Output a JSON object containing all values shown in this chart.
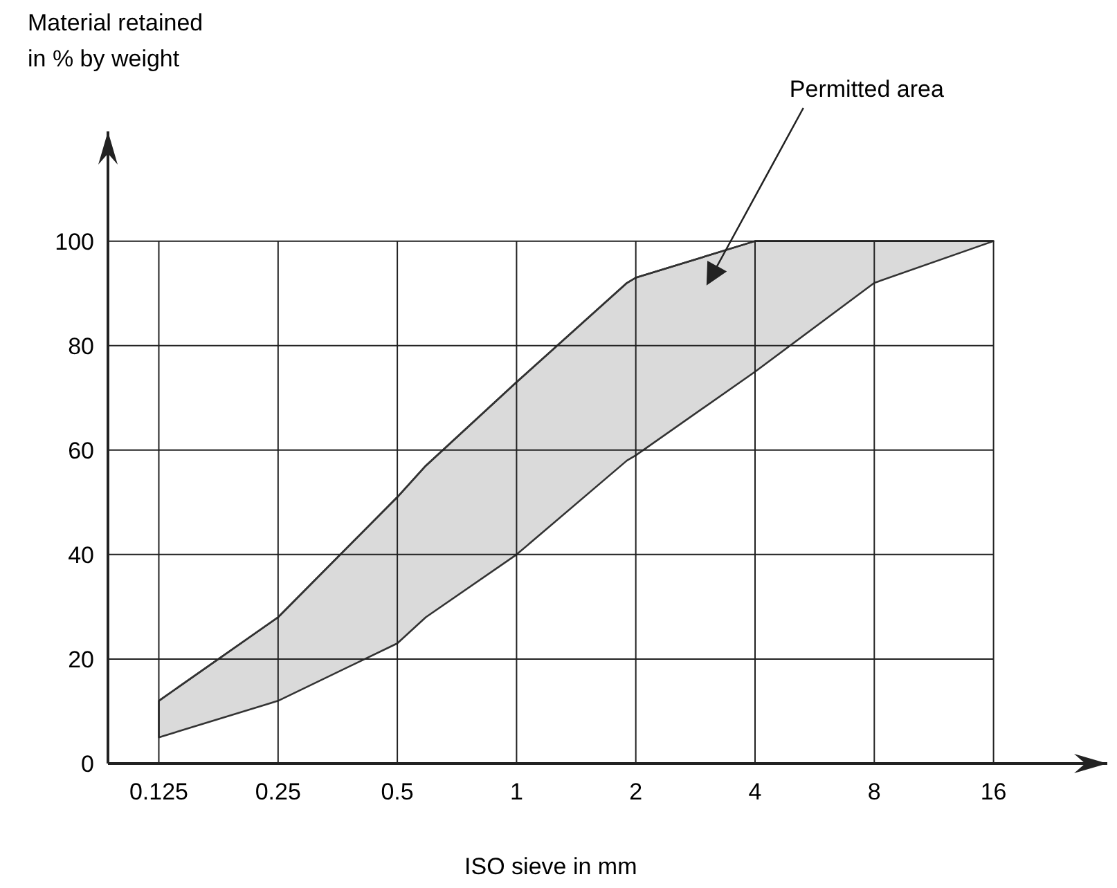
{
  "chart_data": {
    "type": "line",
    "log": "x",
    "xlabel": "ISO sieve in mm",
    "ylabel": "Material retained in % by weight",
    "x": [
      0.125,
      0.25,
      0.5,
      0.59,
      1,
      1.9,
      2,
      4,
      8,
      16
    ],
    "series": [
      {
        "color": "#333333",
        "values": [
          12,
          28,
          51,
          57,
          73,
          92,
          93,
          100,
          100,
          100
        ],
        "lower": [
          5,
          12,
          23,
          28,
          40,
          58,
          59,
          75,
          92,
          100
        ],
        "upper": [
          12,
          28,
          51,
          57,
          73,
          92,
          93,
          100,
          100,
          100
        ]
      }
    ],
    "xlim": [
      0.093,
      31
    ],
    "xticks": [
      0.125,
      0.25,
      0.5,
      1,
      2,
      4,
      8,
      16
    ],
    "ylim": [
      0,
      121
    ],
    "yticks": [
      0,
      20,
      40,
      60,
      80,
      100
    ],
    "grid": true,
    "annotations": [
      "Permitted area"
    ]
  }
}
